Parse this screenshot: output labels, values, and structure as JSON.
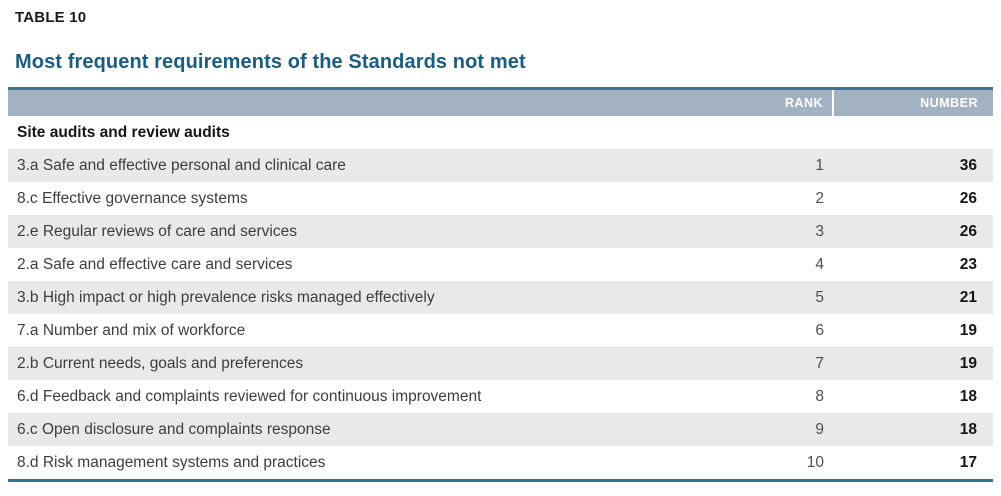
{
  "table": {
    "label": "TABLE 10",
    "title": "Most frequent requirements of the Standards not met",
    "columns": {
      "requirement": "",
      "rank": "RANK",
      "number": "NUMBER"
    },
    "section": "Site audits and review audits",
    "rows": [
      {
        "requirement": "3.a Safe and effective personal and clinical care",
        "rank": "1",
        "number": "36"
      },
      {
        "requirement": "8.c Effective governance systems",
        "rank": "2",
        "number": "26"
      },
      {
        "requirement": "2.e Regular reviews of care and services",
        "rank": "3",
        "number": "26"
      },
      {
        "requirement": "2.a Safe and effective care and services",
        "rank": "4",
        "number": "23"
      },
      {
        "requirement": "3.b High impact or high prevalence risks managed effectively",
        "rank": "5",
        "number": "21"
      },
      {
        "requirement": "7.a Number and mix of workforce",
        "rank": "6",
        "number": "19"
      },
      {
        "requirement": "2.b Current needs, goals and preferences",
        "rank": "7",
        "number": "19"
      },
      {
        "requirement": "6.d Feedback and complaints reviewed for continuous improvement",
        "rank": "8",
        "number": "18"
      },
      {
        "requirement": "6.c Open disclosure and complaints response",
        "rank": "9",
        "number": "18"
      },
      {
        "requirement": "8.d Risk management systems and practices",
        "rank": "10",
        "number": "17"
      }
    ]
  },
  "colors": {
    "title_text": "#1a5c82",
    "header_background": "#a3b2c2",
    "header_text": "#ffffff",
    "top_border": "#44708c",
    "bottom_border": "#27769a",
    "row_shade": "#e9e9e9",
    "row_text": "#3d3d3d",
    "number_text": "#161616"
  }
}
